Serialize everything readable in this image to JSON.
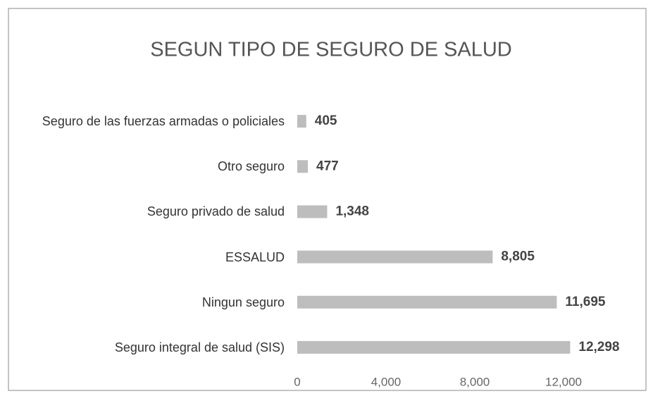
{
  "chart_data": {
    "type": "hbar",
    "title": "SEGUN TIPO DE SEGURO DE SALUD",
    "categories": [
      "Seguro de las fuerzas armadas o policiales",
      "Otro seguro",
      "Seguro privado de salud",
      "ESSALUD",
      "Ningun seguro",
      "Seguro integral de salud (SIS)"
    ],
    "values": [
      405,
      477,
      1348,
      8805,
      11695,
      12298
    ],
    "value_labels": [
      "405",
      "477",
      "1,348",
      "8,805",
      "11,695",
      "12,298"
    ],
    "color": "#bdbdbd",
    "xlim": [
      0,
      14000
    ],
    "xticks": [
      0,
      {
        "value": 4000,
        "label": "4,000"
      },
      {
        "value": 8000,
        "label": "8,000"
      },
      {
        "value": 12000,
        "label": "12,000"
      }
    ],
    "grid": false
  }
}
